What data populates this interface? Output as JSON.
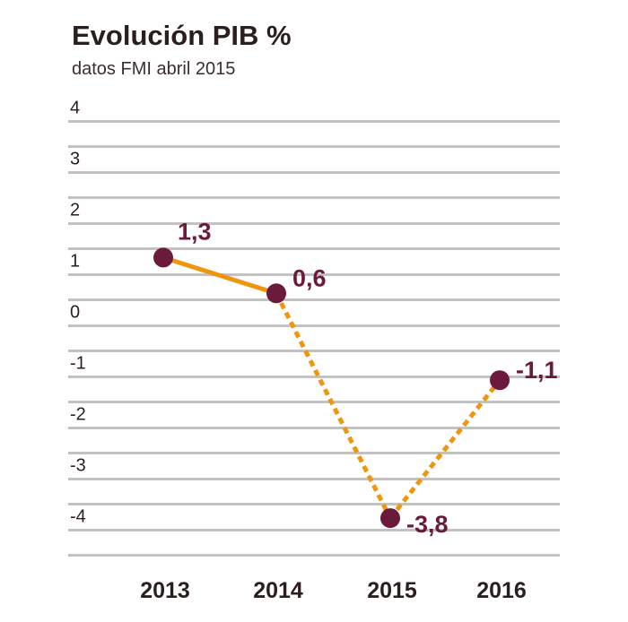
{
  "chart_data": {
    "type": "line",
    "title": "Evolución PIB %",
    "subtitle": "datos FMI abril 2015",
    "categories": [
      "2013",
      "2014",
      "2015",
      "2016"
    ],
    "series": [
      {
        "values": [
          1.3,
          0.6,
          -3.8,
          -1.1
        ]
      }
    ],
    "data_labels": [
      "1,3",
      "0,6",
      "-3,8",
      "-1,1"
    ],
    "ytick_labels": [
      "4",
      "3",
      "2",
      "1",
      "0",
      "-1",
      "-2",
      "-3",
      "-4"
    ],
    "ylim": [
      -4.5,
      4.5
    ],
    "grid": true,
    "line_style": [
      "solid",
      "dashed",
      "dashed"
    ],
    "colors": {
      "line": "#f0960e",
      "marker": "#6b1a3c",
      "label": "#6b1a3c",
      "grid": "#c2c2c2",
      "text": "#2a1f1e"
    }
  }
}
